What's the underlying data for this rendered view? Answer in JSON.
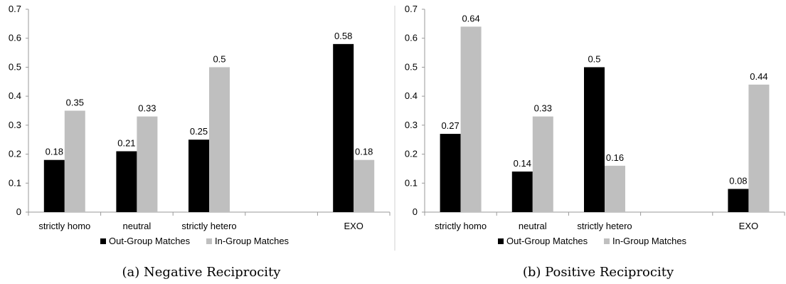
{
  "colors": {
    "out_group": "#000000",
    "in_group": "#bfbfbf",
    "axis": "#999999"
  },
  "legend": {
    "out_group": "Out-Group Matches",
    "in_group": "In-Group Matches"
  },
  "y_ticks": [
    "0",
    "0.1",
    "0.2",
    "0.3",
    "0.4",
    "0.5",
    "0.6",
    "0.7"
  ],
  "chart_data": [
    {
      "type": "bar",
      "caption": "(a) Negative Reciprocity",
      "categories": [
        "strictly homo",
        "neutral",
        "strictly hetero",
        "",
        "EXO"
      ],
      "series": [
        {
          "name": "Out-Group Matches",
          "values": [
            0.18,
            0.21,
            0.25,
            null,
            0.58
          ],
          "labels": [
            "0.18",
            "0.21",
            "0.25",
            "",
            "0.58"
          ]
        },
        {
          "name": "In-Group Matches",
          "values": [
            0.35,
            0.33,
            0.5,
            null,
            0.18
          ],
          "labels": [
            "0.35",
            "0.33",
            "0.5",
            "",
            "0.18"
          ]
        }
      ],
      "ylim": [
        0,
        0.7
      ],
      "legend_position": "bottom",
      "grid": false
    },
    {
      "type": "bar",
      "caption": "(b) Positive Reciprocity",
      "categories": [
        "strictly homo",
        "neutral",
        "strictly hetero",
        "",
        "EXO"
      ],
      "series": [
        {
          "name": "Out-Group Matches",
          "values": [
            0.27,
            0.14,
            0.5,
            null,
            0.08
          ],
          "labels": [
            "0.27",
            "0.14",
            "0.5",
            "",
            "0.08"
          ]
        },
        {
          "name": "In-Group Matches",
          "values": [
            0.64,
            0.33,
            0.16,
            null,
            0.44
          ],
          "labels": [
            "0.64",
            "0.33",
            "0.16",
            "",
            "0.44"
          ]
        }
      ],
      "ylim": [
        0,
        0.7
      ],
      "legend_position": "bottom",
      "grid": false
    }
  ]
}
